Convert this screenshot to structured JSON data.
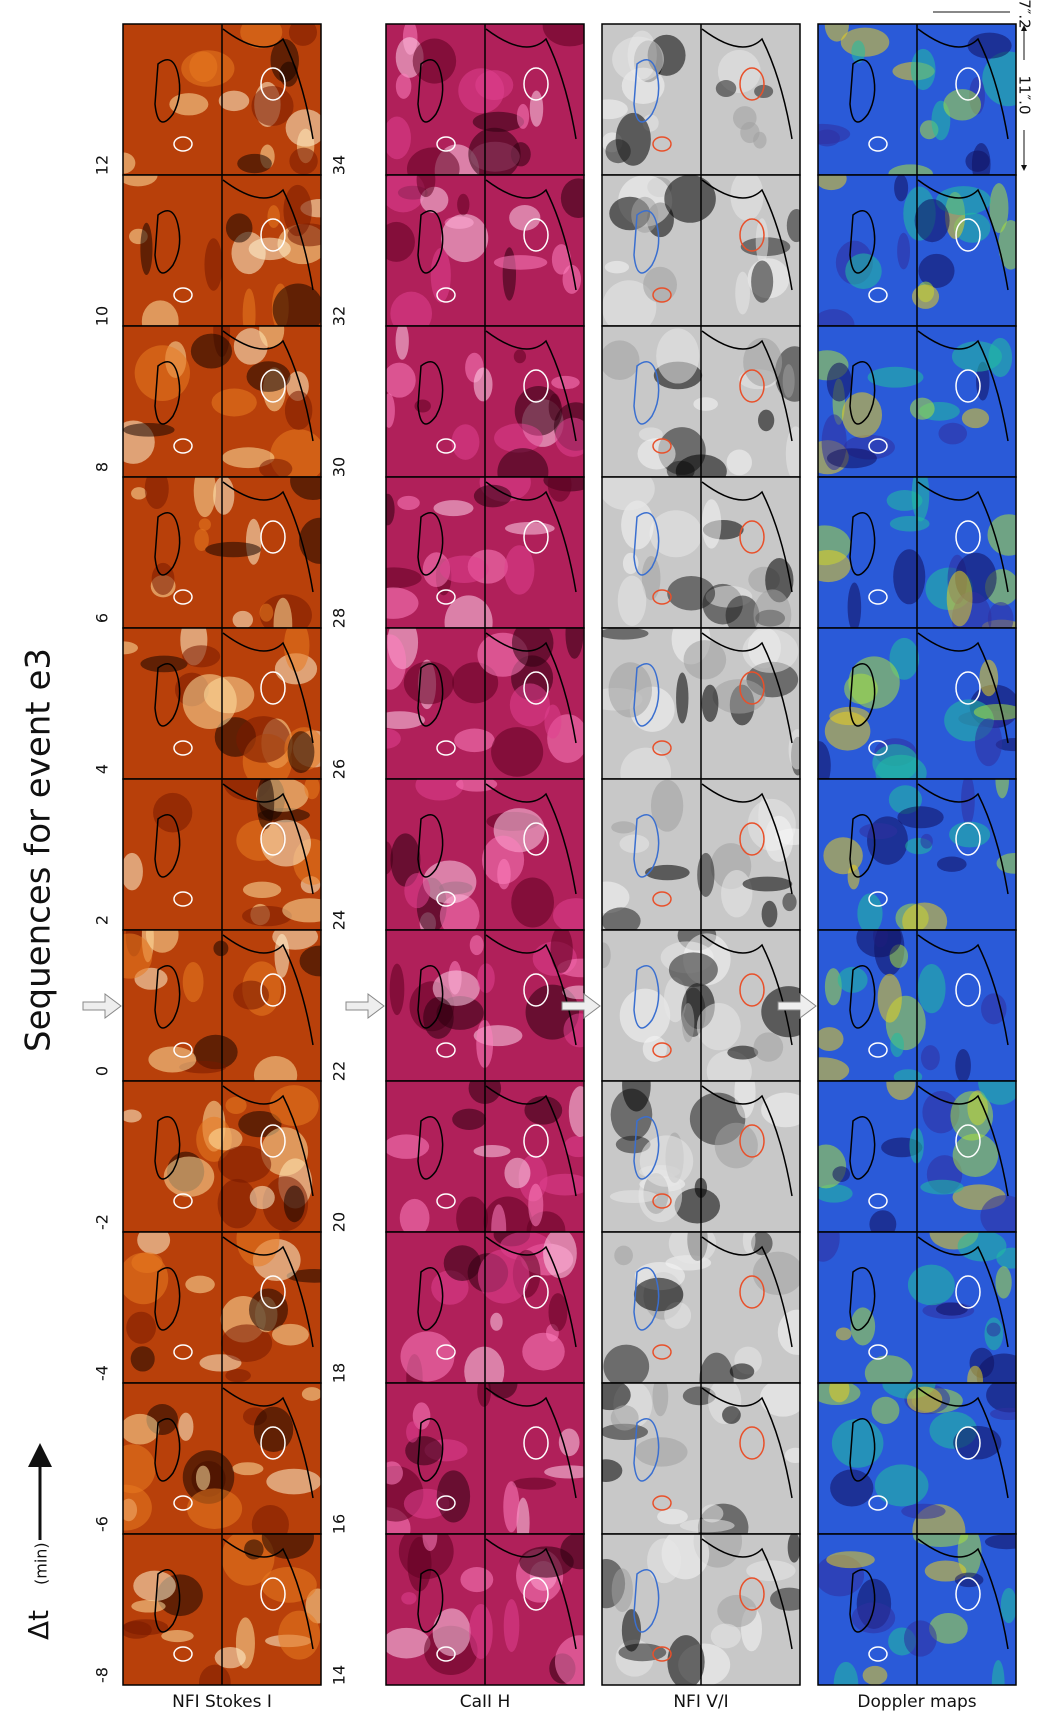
{
  "title": "Sequences for event e3",
  "axis_label": "Δt",
  "axis_unit": "(min)",
  "left_times": [
    -8,
    -6,
    -4,
    -2,
    0,
    2,
    4,
    6,
    8,
    10,
    12
  ],
  "right_times": [
    14,
    16,
    18,
    20,
    22,
    24,
    26,
    28,
    30,
    32,
    34
  ],
  "panels": [
    "NFI Stokes I",
    "CaII H",
    "NFI  V/I",
    "Doppler maps"
  ],
  "scale": {
    "width": "11″.0",
    "height": "7″.2"
  }
}
